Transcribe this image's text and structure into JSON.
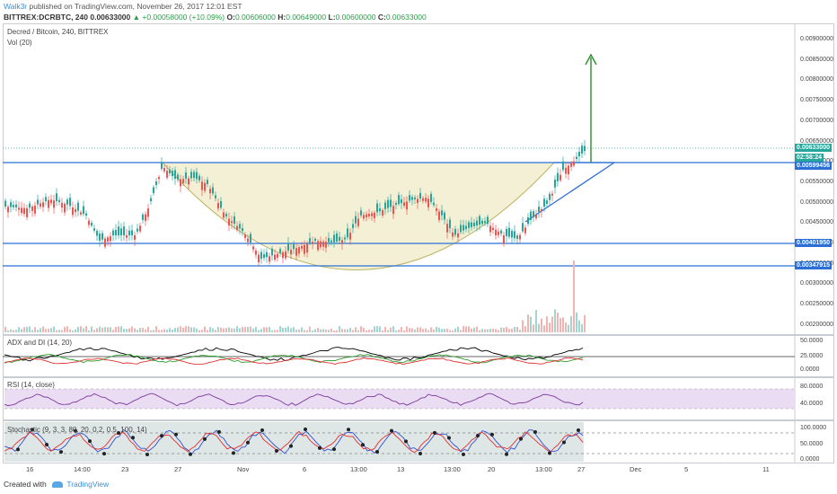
{
  "header": {
    "author": "Walk3r",
    "published_text": "published on TradingView.com, November 26, 2017 12:01 EST",
    "symbol": "BITTREX:DCRBTC, 240",
    "price": "0.00633000",
    "change": "▲ +0.00058000 (+10.09%)",
    "ohlc": {
      "o_label": "O:",
      "o": "0.00606000",
      "h_label": "H:",
      "h": "0.00649000",
      "l_label": "L:",
      "l": "0.00600000",
      "c_label": "C:",
      "c": "0.00633000"
    }
  },
  "main_pane": {
    "title": "Decred / Bitcoin, 240, BITTREX",
    "vol_label": "Vol (20)",
    "price_axis": [
      "0.00900000",
      "0.00850000",
      "0.00800000",
      "0.00750000",
      "0.00700000",
      "0.00650000",
      "0.00600000",
      "0.00550000",
      "0.00500000",
      "0.00450000",
      "0.00400000",
      "0.00350000",
      "0.00300000",
      "0.00250000",
      "0.00200000"
    ],
    "badges": {
      "last_price": "0.00633000",
      "countdown": "02:58:24",
      "resistance": "0.00599456",
      "support1": "0.00401950",
      "support2": "0.00347915"
    }
  },
  "adx_pane": {
    "title": "ADX and DI (14, 20)",
    "axis": [
      "50.0000",
      "25.0000",
      "0.0000"
    ]
  },
  "rsi_pane": {
    "title": "RSI (14, close)",
    "axis": [
      "80.0000",
      "40.0000"
    ]
  },
  "stoch_pane": {
    "title": "Stochastic (9, 3, 3, 80, 20, 0.2, 0.5, 100, 14)",
    "axis": [
      "100.0000",
      "50.0000",
      "0.0000"
    ]
  },
  "time_axis": [
    "16",
    "14:00",
    "23",
    "27",
    "Nov",
    "6",
    "13:00",
    "13",
    "13:00",
    "20",
    "13:00",
    "27",
    "Dec",
    "5",
    "11"
  ],
  "footer": {
    "created_with": "Created with",
    "brand": "TradingView"
  },
  "colors": {
    "candle_up": "#26a69a",
    "candle_down": "#ef5350",
    "level_line": "#2b6fd6",
    "cup_fill": "#f2eed0",
    "cup_stroke": "#b0a84a",
    "arrow": "#2e8b2e",
    "adx": "#000000",
    "di_plus": "#2e9c2e",
    "di_minus": "#e03030",
    "rsi": "#7b3a9b",
    "rsi_band": "#eadcf3",
    "stoch_k": "#3050d0",
    "stoch_d": "#e03030"
  }
}
